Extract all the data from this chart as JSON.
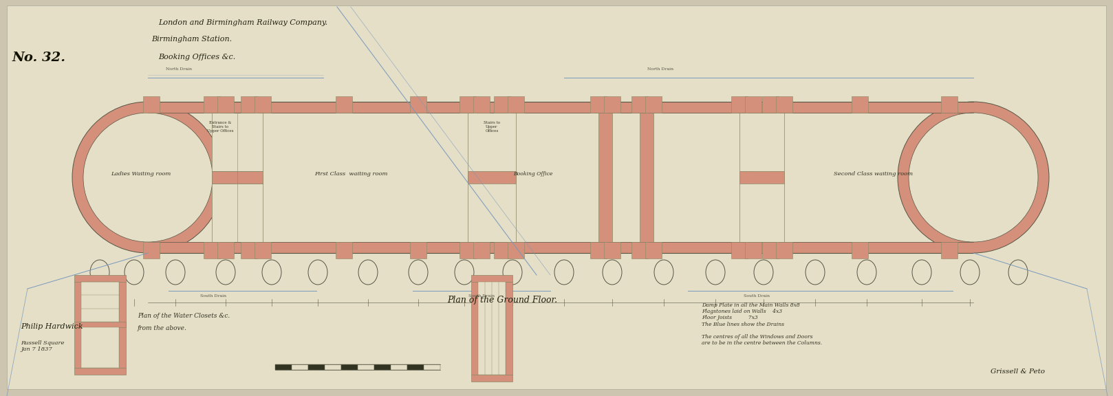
{
  "bg_color": "#cdc5b0",
  "paper_color": "#e6dfc8",
  "wall_color": "#d4907a",
  "wall_edge_color": "#888866",
  "line_color": "#555544",
  "blue_line_color": "#7799bb",
  "title_line1": "London and Birmingham Railway Company.",
  "title_line2": "Birmingham Station.",
  "title_line3": "Booking Offices &c.",
  "no_label": "No. 32.",
  "main_plan_label": "Plan of the Ground Floor.",
  "wc_plan_label": "Plan of the Water Closets &c.",
  "wc_plan_label2": "from the above.",
  "signature_left": "Philip Hardwick",
  "signature_right": "Grissell & Peto",
  "date_text": "Russell Square\nJan 7 1837",
  "notes_text": "Damp Plate in all the Main Walls 8x8\nFlagstones laid on Walls    4x3\nFloor Joists          7x3\nThe Blue lines show the Drains\n\nThe centres of all the Windows and Doors\nare to be in the centre between the Columns.",
  "fig_width": 16.18,
  "fig_height": 5.76
}
